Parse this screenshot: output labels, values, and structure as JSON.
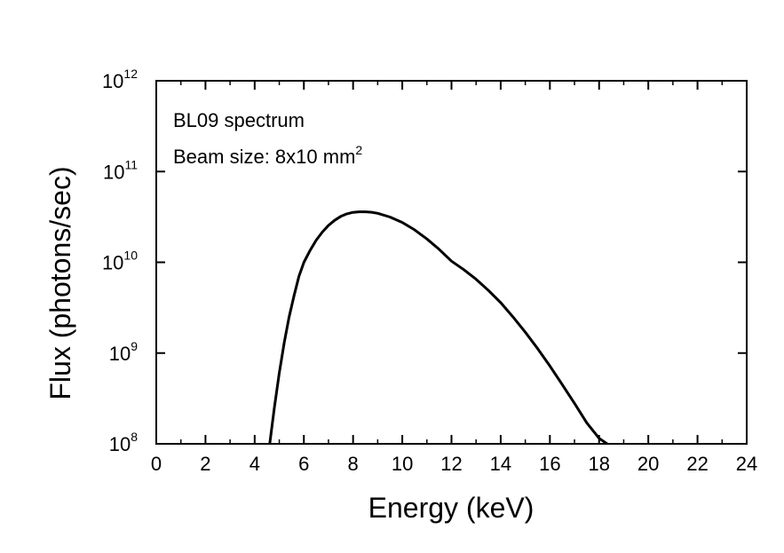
{
  "chart_data": {
    "type": "line",
    "xlabel": "Energy (keV)",
    "ylabel": "Flux (photons/sec)",
    "xlim": [
      0,
      24
    ],
    "ylim": [
      100000000,
      1000000000000
    ],
    "yscale": "log",
    "grid": false,
    "x_ticks": [
      "0",
      "2",
      "4",
      "6",
      "8",
      "10",
      "12",
      "14",
      "16",
      "18",
      "20",
      "22",
      "24"
    ],
    "y_ticks": [
      {
        "base": "10",
        "exp": "8"
      },
      {
        "base": "10",
        "exp": "9"
      },
      {
        "base": "10",
        "exp": "10"
      },
      {
        "base": "10",
        "exp": "11"
      },
      {
        "base": "10",
        "exp": "12"
      }
    ],
    "annotations": {
      "line1": "BL09 spectrum",
      "line2_text": "Beam size: 8x10 mm",
      "line2_sup": "2"
    },
    "series": [
      {
        "color": "#000000",
        "x": [
          4.6,
          4.8,
          5.0,
          5.2,
          5.4,
          5.6,
          5.8,
          6.0,
          6.25,
          6.5,
          6.75,
          7.0,
          7.25,
          7.5,
          7.75,
          8.0,
          8.25,
          8.5,
          8.75,
          9.0,
          9.5,
          10.0,
          10.5,
          11.0,
          11.5,
          12.0,
          12.5,
          13.0,
          13.5,
          14.0,
          14.5,
          15.0,
          15.5,
          16.0,
          16.5,
          17.0,
          17.5,
          18.0,
          18.4,
          18.7
        ],
        "y": [
          95000000,
          250000000,
          600000000,
          1300000000,
          2500000000,
          4300000000,
          7000000000,
          10000000000,
          13500000000,
          17500000000,
          21500000000,
          25500000000,
          29000000000,
          32000000000,
          34200000000,
          35500000000,
          36000000000,
          36000000000,
          35600000000,
          34700000000,
          31500000000,
          27500000000,
          22800000000,
          18100000000,
          13900000000,
          10300000000,
          8300000000,
          6500000000,
          4900000000,
          3600000000,
          2500000000,
          1700000000,
          1120000000,
          720000000,
          450000000,
          280000000,
          170000000,
          115000000,
          97000000,
          92000000
        ]
      }
    ]
  }
}
